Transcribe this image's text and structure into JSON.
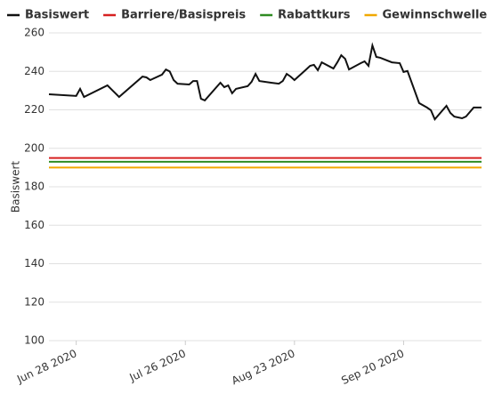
{
  "chart_data": {
    "type": "line",
    "y_label": "Basiswert",
    "xlim": [
      "2020-06-21",
      "2020-10-10"
    ],
    "xticks": [
      {
        "value": "2020-06-28",
        "label": "Jun 28 2020"
      },
      {
        "value": "2020-07-26",
        "label": "Jul 26 2020"
      },
      {
        "value": "2020-08-23",
        "label": "Aug 23 2020"
      },
      {
        "value": "2020-09-20",
        "label": "Sep 20 2020"
      }
    ],
    "ylim": [
      100,
      260
    ],
    "yticks": [
      100,
      120,
      140,
      160,
      180,
      200,
      220,
      240,
      260
    ],
    "grid": true,
    "legend": "top",
    "series": [
      {
        "name": "Basiswert",
        "color": "#111111",
        "x": [
          "2020-06-21",
          "2020-06-28",
          "2020-06-29",
          "2020-06-30",
          "2020-07-06",
          "2020-07-09",
          "2020-07-15",
          "2020-07-16",
          "2020-07-17",
          "2020-07-20",
          "2020-07-21",
          "2020-07-22",
          "2020-07-23",
          "2020-07-24",
          "2020-07-27",
          "2020-07-28",
          "2020-07-29",
          "2020-07-30",
          "2020-07-31",
          "2020-08-04",
          "2020-08-05",
          "2020-08-06",
          "2020-08-07",
          "2020-08-08",
          "2020-08-11",
          "2020-08-12",
          "2020-08-13",
          "2020-08-14",
          "2020-08-17",
          "2020-08-19",
          "2020-08-20",
          "2020-08-21",
          "2020-08-22",
          "2020-08-23",
          "2020-08-26",
          "2020-08-27",
          "2020-08-28",
          "2020-08-29",
          "2020-08-30",
          "2020-09-02",
          "2020-09-03",
          "2020-09-04",
          "2020-09-05",
          "2020-09-06",
          "2020-09-09",
          "2020-09-10",
          "2020-09-11",
          "2020-09-12",
          "2020-09-13",
          "2020-09-14",
          "2020-09-17",
          "2020-09-19",
          "2020-09-20",
          "2020-09-21",
          "2020-09-24",
          "2020-09-26",
          "2020-09-27",
          "2020-09-28",
          "2020-10-01",
          "2020-10-02",
          "2020-10-03",
          "2020-10-05",
          "2020-10-06",
          "2020-10-08",
          "2020-10-10"
        ],
        "values": [
          228.1,
          227.2,
          230.9,
          226.7,
          232.7,
          226.7,
          237.3,
          236.9,
          235.5,
          238.3,
          241,
          240,
          235.5,
          233.6,
          233.2,
          235,
          235,
          225.8,
          224.9,
          234.1,
          231.8,
          232.7,
          228.6,
          230.9,
          232.3,
          234.6,
          238.7,
          235,
          234.1,
          233.6,
          235,
          238.7,
          237.3,
          235.5,
          241,
          242.9,
          243.4,
          240.6,
          244.7,
          241.5,
          244.7,
          248.4,
          246.5,
          241,
          244.3,
          245.2,
          242.9,
          253.5,
          247.5,
          247.1,
          244.7,
          244.3,
          239.7,
          240.2,
          223.5,
          221.2,
          219.8,
          215.1,
          222.1,
          218.4,
          216.5,
          215.6,
          216.5,
          221.2,
          221.2
        ]
      },
      {
        "name": "Barriere/Basispreis",
        "color": "#d62020",
        "x": [
          "2020-06-21",
          "2020-10-10"
        ],
        "values": [
          195,
          195
        ]
      },
      {
        "name": "Rabattkurs",
        "color": "#2e8b22",
        "x": [
          "2020-06-21",
          "2020-10-10"
        ],
        "values": [
          193,
          193
        ]
      },
      {
        "name": "Gewinnschwelle",
        "color": "#f0a800",
        "x": [
          "2020-06-21",
          "2020-10-10"
        ],
        "values": [
          190,
          190
        ]
      }
    ]
  }
}
